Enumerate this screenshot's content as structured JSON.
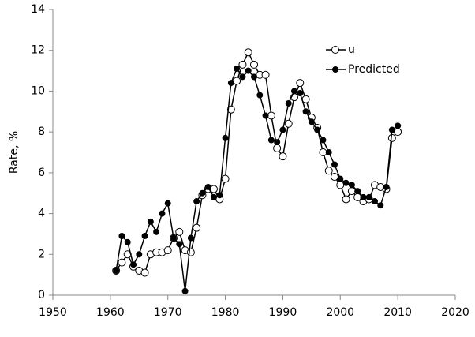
{
  "chart_data": {
    "type": "line",
    "y_label": "Rate, %",
    "x": [
      1961,
      1962,
      1963,
      1964,
      1965,
      1966,
      1967,
      1968,
      1969,
      1970,
      1971,
      1972,
      1973,
      1974,
      1975,
      1976,
      1977,
      1978,
      1979,
      1980,
      1981,
      1982,
      1983,
      1984,
      1985,
      1986,
      1987,
      1988,
      1989,
      1990,
      1991,
      1992,
      1993,
      1994,
      1995,
      1996,
      1997,
      1998,
      1999,
      2000,
      2001,
      2002,
      2003,
      2004,
      2005,
      2006,
      2007,
      2008,
      2009,
      2010
    ],
    "series": [
      {
        "name": "u",
        "color": "#000000",
        "marker": "open",
        "values": [
          1.2,
          1.6,
          2.0,
          1.4,
          1.2,
          1.1,
          2.0,
          2.1,
          2.1,
          2.2,
          2.8,
          3.1,
          2.2,
          2.1,
          3.3,
          4.9,
          5.2,
          5.2,
          4.7,
          5.7,
          9.1,
          10.5,
          11.3,
          11.9,
          11.3,
          10.8,
          10.8,
          8.8,
          7.2,
          6.8,
          8.4,
          9.7,
          10.4,
          9.6,
          8.7,
          8.2,
          7.0,
          6.1,
          5.8,
          5.4,
          4.7,
          5.1,
          4.8,
          4.6,
          4.7,
          5.4,
          5.3,
          5.2,
          7.7,
          8.0
        ]
      },
      {
        "name": "Predicted",
        "color": "#000000",
        "marker": "filled",
        "values": [
          1.2,
          2.9,
          2.6,
          1.5,
          2.0,
          2.9,
          3.6,
          3.1,
          4.0,
          4.5,
          2.8,
          2.5,
          0.2,
          2.8,
          4.6,
          5.0,
          5.3,
          4.8,
          4.9,
          7.7,
          10.4,
          11.1,
          10.7,
          11.0,
          10.7,
          9.8,
          8.8,
          7.6,
          7.5,
          8.1,
          9.4,
          10.0,
          9.9,
          9.0,
          8.5,
          8.1,
          7.6,
          7.0,
          6.4,
          5.7,
          5.5,
          5.4,
          5.1,
          4.8,
          4.8,
          4.6,
          4.4,
          5.3,
          8.1,
          8.3
        ]
      }
    ],
    "xlim": [
      1950,
      2020
    ],
    "xticks": [
      1950,
      1960,
      1970,
      1980,
      1990,
      2000,
      2010,
      2020
    ],
    "ylim": [
      0,
      14
    ],
    "yticks": [
      0,
      2,
      4,
      6,
      8,
      10,
      12,
      14
    ],
    "grid": false,
    "legend": "upper-right"
  }
}
